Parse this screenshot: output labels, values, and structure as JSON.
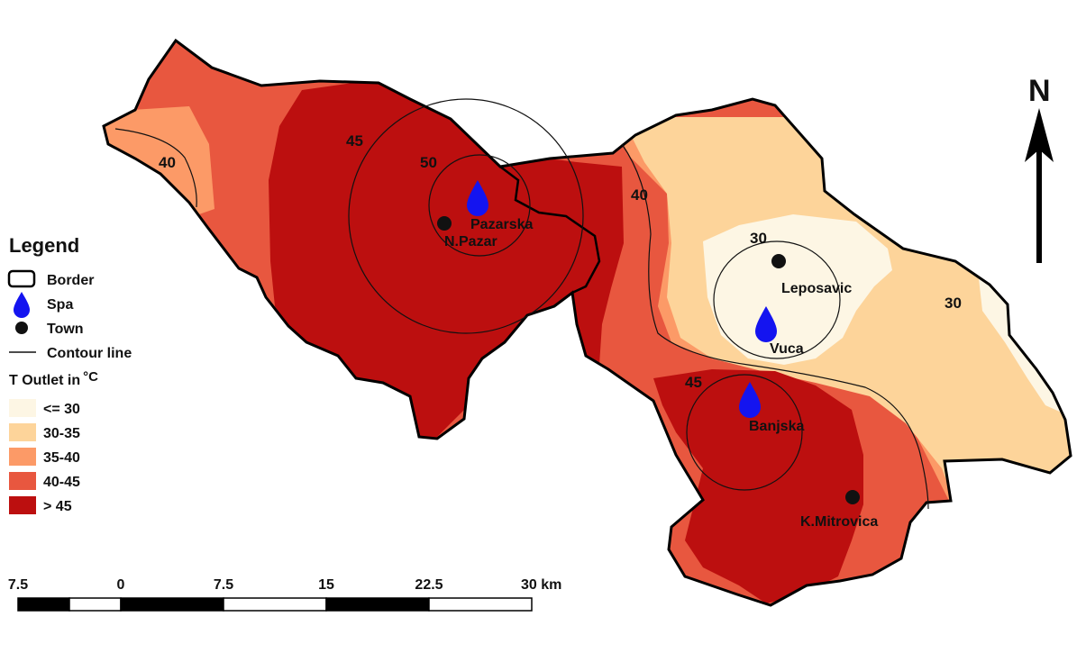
{
  "north_label": "N",
  "legend": {
    "title": "Legend",
    "border_label": "Border",
    "spa_label": "Spa",
    "town_label": "Town",
    "contour_label": "Contour line",
    "temp_title": "T Outlet in",
    "temp_unit": "°C",
    "classes": [
      {
        "label": "<= 30",
        "color": "#fdf6e4"
      },
      {
        "label": "30-35",
        "color": "#fdd49a"
      },
      {
        "label": "35-40",
        "color": "#fc9a67"
      },
      {
        "label": "40-45",
        "color": "#e8573f"
      },
      {
        "label": "> 45",
        "color": "#bc0f0f"
      }
    ]
  },
  "contour_labels": [
    "40",
    "45",
    "50",
    "40",
    "30",
    "30",
    "45"
  ],
  "places": {
    "pazarska": "Pazarska",
    "npazar": "N.Pazar",
    "leposavic": "Leposavic",
    "vuca": "Vuca",
    "banjska": "Banjska",
    "kmitrovica": "K.Mitrovica"
  },
  "scale_bar": {
    "labels": [
      "7.5",
      "0",
      "7.5",
      "15",
      "22.5",
      "30 km"
    ]
  },
  "colors": {
    "border": "#000000",
    "spa": "#1414f0",
    "town": "#111111"
  }
}
